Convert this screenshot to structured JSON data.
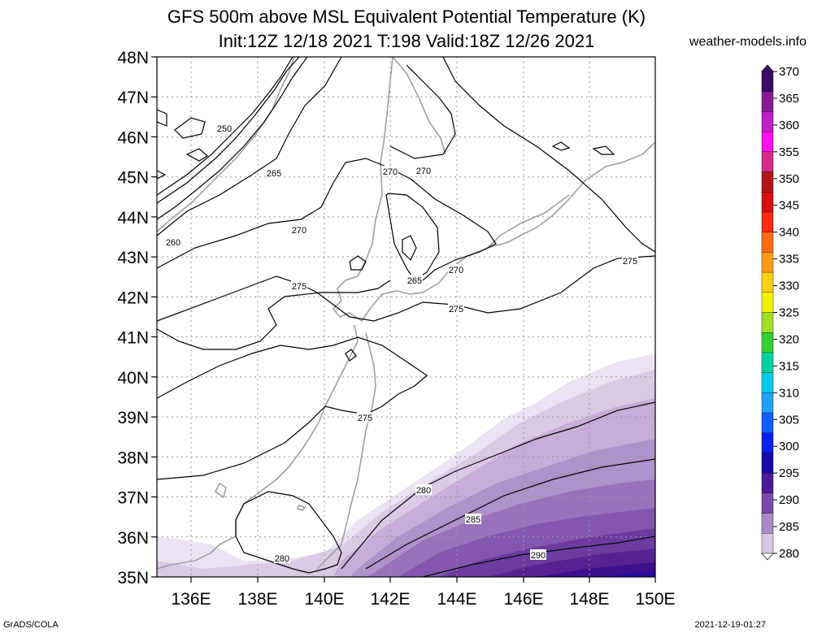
{
  "title": {
    "line1": "GFS 500m above MSL Equivalent Potential Temperature (K)",
    "line2": "Init:12Z 12/18 2021 T:198 Valid:18Z 12/26 2021"
  },
  "site": "weather-models.info",
  "footer": {
    "left": "GrADS/COLA",
    "right": "2021-12-19-01:27"
  },
  "map": {
    "lat_labels": [
      "48N",
      "47N",
      "46N",
      "45N",
      "44N",
      "43N",
      "42N",
      "41N",
      "40N",
      "39N",
      "38N",
      "37N",
      "36N",
      "35N"
    ],
    "lon_labels": [
      "136E",
      "138E",
      "140E",
      "142E",
      "144E",
      "146E",
      "148E",
      "150E"
    ],
    "contour_labels": [
      {
        "text": "250"
      },
      {
        "text": "265"
      },
      {
        "text": "260"
      },
      {
        "text": "270"
      },
      {
        "text": "270"
      },
      {
        "text": "270"
      },
      {
        "text": "270"
      },
      {
        "text": "265"
      },
      {
        "text": "275"
      },
      {
        "text": "275"
      },
      {
        "text": "275"
      },
      {
        "text": "275"
      },
      {
        "text": "280"
      },
      {
        "text": "285"
      },
      {
        "text": "290"
      },
      {
        "text": "280"
      }
    ],
    "shading_colors": [
      "#e8e0ef",
      "#d6c6e3",
      "#c4abd6",
      "#b08fc9",
      "#9a71bb",
      "#8455ad",
      "#6e3a9e",
      "#5a2391",
      "#4a1488",
      "#3a0c8a",
      "#2a0a9a"
    ]
  },
  "colorbar": {
    "labels": [
      "370",
      "365",
      "360",
      "355",
      "350",
      "345",
      "340",
      "335",
      "330",
      "325",
      "320",
      "315",
      "310",
      "305",
      "300",
      "295",
      "290",
      "285",
      "280"
    ],
    "colors": [
      "#3a0d6b",
      "#8a1a9a",
      "#c21bc9",
      "#ff10ee",
      "#d42a8a",
      "#b01818",
      "#d81010",
      "#ff2a10",
      "#ff6a10",
      "#ff9a18",
      "#ffd010",
      "#f2f200",
      "#a0e020",
      "#30d030",
      "#00d0a0",
      "#00c8e8",
      "#20a0ff",
      "#1060ff",
      "#0a20f0",
      "#1a0aa8",
      "#4a1a9a",
      "#7a4aaa",
      "#a88ac8",
      "#d8c8e8"
    ]
  }
}
